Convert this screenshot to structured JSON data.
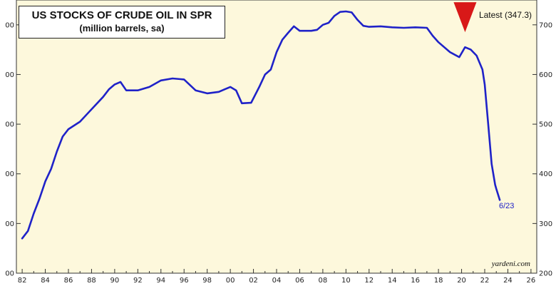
{
  "chart_data": {
    "type": "line",
    "title": "US STOCKS OF CRUDE OIL IN SPR",
    "subtitle": "(million barrels, sa)",
    "latest_label": "Latest (347.3)",
    "end_label": "6/23",
    "source": "yardeni.com",
    "xlim": [
      1981.5,
      2026.5
    ],
    "ylim": [
      200,
      750
    ],
    "x_ticks": [
      "82",
      "84",
      "86",
      "88",
      "90",
      "92",
      "94",
      "96",
      "98",
      "00",
      "02",
      "04",
      "06",
      "08",
      "10",
      "12",
      "14",
      "16",
      "18",
      "20",
      "22",
      "24",
      "26"
    ],
    "y_ticks": [
      200,
      300,
      400,
      500,
      600,
      700
    ],
    "y_tick_labels_left": [
      "00",
      "00",
      "00",
      "00",
      "00",
      "00"
    ],
    "y_tick_labels_right": [
      "200",
      "300",
      "400",
      "500",
      "600",
      "700"
    ],
    "colors": {
      "line": "#1f22c8",
      "plot_bg": "#fdf8dc",
      "marker": "#d81818"
    },
    "marker": {
      "shape": "down-triangle",
      "x": 2020.3,
      "y": 711
    },
    "grid": false,
    "series": [
      {
        "values": [
          [
            1982.0,
            270
          ],
          [
            1982.5,
            285
          ],
          [
            1983.0,
            320
          ],
          [
            1983.5,
            350
          ],
          [
            1984.0,
            385
          ],
          [
            1984.5,
            410
          ],
          [
            1985.0,
            445
          ],
          [
            1985.5,
            475
          ],
          [
            1986.0,
            490
          ],
          [
            1987.0,
            505
          ],
          [
            1988.0,
            530
          ],
          [
            1989.0,
            555
          ],
          [
            1989.5,
            570
          ],
          [
            1990.0,
            580
          ],
          [
            1990.5,
            585
          ],
          [
            1991.0,
            568
          ],
          [
            1992.0,
            568
          ],
          [
            1993.0,
            575
          ],
          [
            1994.0,
            588
          ],
          [
            1995.0,
            592
          ],
          [
            1996.0,
            590
          ],
          [
            1997.0,
            568
          ],
          [
            1998.0,
            562
          ],
          [
            1999.0,
            565
          ],
          [
            1999.5,
            570
          ],
          [
            2000.0,
            575
          ],
          [
            2000.5,
            568
          ],
          [
            2001.0,
            542
          ],
          [
            2001.8,
            543
          ],
          [
            2002.5,
            575
          ],
          [
            2003.0,
            600
          ],
          [
            2003.5,
            610
          ],
          [
            2004.0,
            645
          ],
          [
            2004.5,
            670
          ],
          [
            2005.0,
            684
          ],
          [
            2005.5,
            697
          ],
          [
            2006.0,
            688
          ],
          [
            2007.0,
            688
          ],
          [
            2007.5,
            690
          ],
          [
            2008.0,
            700
          ],
          [
            2008.5,
            704
          ],
          [
            2009.0,
            718
          ],
          [
            2009.5,
            726
          ],
          [
            2010.0,
            727
          ],
          [
            2010.5,
            725
          ],
          [
            2011.0,
            710
          ],
          [
            2011.5,
            698
          ],
          [
            2012.0,
            696
          ],
          [
            2013.0,
            697
          ],
          [
            2014.0,
            695
          ],
          [
            2015.0,
            694
          ],
          [
            2016.0,
            695
          ],
          [
            2017.0,
            694
          ],
          [
            2017.5,
            678
          ],
          [
            2018.0,
            665
          ],
          [
            2019.0,
            645
          ],
          [
            2019.8,
            635
          ],
          [
            2020.3,
            655
          ],
          [
            2020.8,
            650
          ],
          [
            2021.3,
            638
          ],
          [
            2021.8,
            610
          ],
          [
            2022.0,
            580
          ],
          [
            2022.3,
            500
          ],
          [
            2022.6,
            420
          ],
          [
            2022.9,
            378
          ],
          [
            2023.0,
            370
          ],
          [
            2023.3,
            347.3
          ]
        ]
      }
    ]
  }
}
